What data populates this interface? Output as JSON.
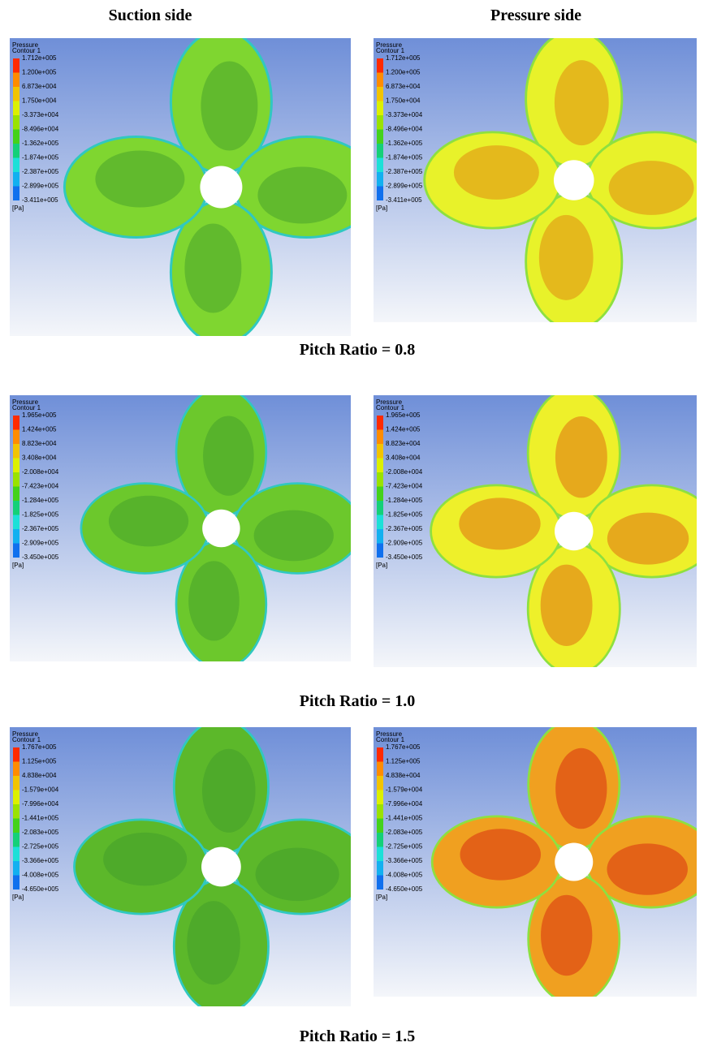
{
  "headers": [
    "Suction side",
    "Pressure side"
  ],
  "legend_title": [
    "Pressure",
    "Contour 1"
  ],
  "unit": "[Pa]",
  "rows": [
    {
      "caption": "Pitch Ratio = 0.8",
      "levels": [
        "1.712e+005",
        "1.200e+005",
        "6.873e+004",
        "1.750e+004",
        "-3.373e+004",
        "-8.496e+004",
        "-1.362e+005",
        "-1.874e+005",
        "-2.387e+005",
        "-2.899e+005",
        "-3.411e+005"
      ]
    },
    {
      "caption": "Pitch Ratio = 1.0",
      "levels": [
        "1.965e+005",
        "1.424e+005",
        "8.823e+004",
        "3.408e+004",
        "-2.008e+004",
        "-7.423e+004",
        "-1.284e+005",
        "-1.825e+005",
        "-2.367e+005",
        "-2.909e+005",
        "-3.450e+005"
      ]
    },
    {
      "caption": "Pitch Ratio = 1.5",
      "levels": [
        "1.767e+005",
        "1.125e+005",
        "4.838e+004",
        "-1.579e+004",
        "-7.996e+004",
        "-1.441e+005",
        "-2.083e+005",
        "-2.725e+005",
        "-3.366e+005",
        "-4.008e+005",
        "-4.650e+005"
      ]
    }
  ]
}
